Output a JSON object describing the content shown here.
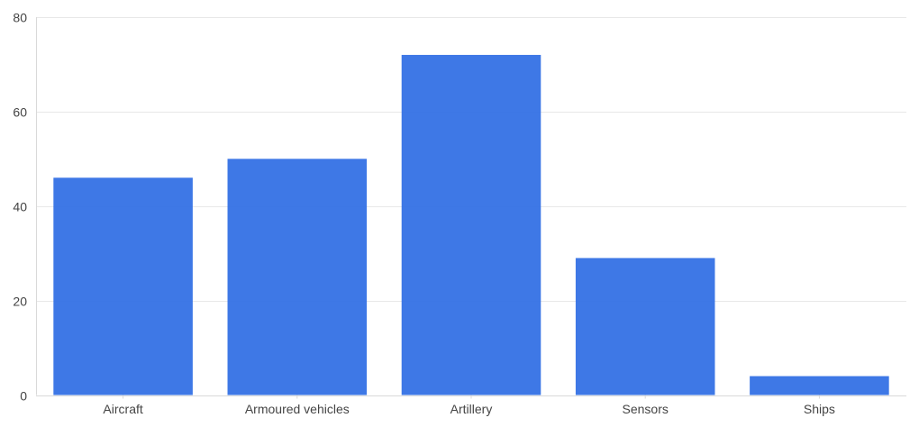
{
  "chart_data": {
    "type": "bar",
    "categories": [
      "Aircraft",
      "Armoured vehicles",
      "Artillery",
      "Sensors",
      "Ships"
    ],
    "values": [
      46,
      50,
      72,
      29,
      4
    ],
    "title": "",
    "xlabel": "",
    "ylabel": "",
    "ylim": [
      0,
      80
    ],
    "yticks": [
      0,
      20,
      40,
      60,
      80
    ],
    "grid": true,
    "legend": "none",
    "bar_color": "#2f6ee4",
    "grid_color": "#e8e8e8",
    "tick_label_color": "#444444"
  }
}
